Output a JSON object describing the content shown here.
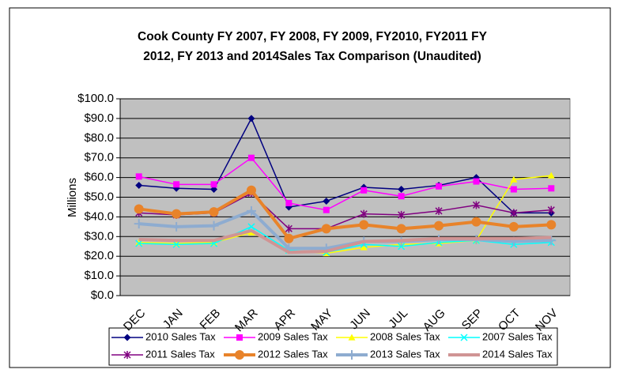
{
  "chart_data": {
    "type": "line",
    "title": "Cook County FY 2007, FY 2008, FY 2009, FY2010, FY2011 FY 2012, FY 2013 and 2014Sales Tax Comparison (Unaudited)",
    "y_label": "Millions",
    "categories": [
      "DEC",
      "JAN",
      "FEB",
      "MAR",
      "APR",
      "MAY",
      "JUN",
      "JUL",
      "AUG",
      "SEP",
      "OCT",
      "NOV"
    ],
    "ylim": [
      0,
      100
    ],
    "yticks": [
      {
        "value": 0,
        "label": "$0.0"
      },
      {
        "value": 10,
        "label": "$10.0"
      },
      {
        "value": 20,
        "label": "$20.0"
      },
      {
        "value": 30,
        "label": "$30.0"
      },
      {
        "value": 40,
        "label": "$40.0"
      },
      {
        "value": 50,
        "label": "$50.0"
      },
      {
        "value": 60,
        "label": "$60.0"
      },
      {
        "value": 70,
        "label": "$70.0"
      },
      {
        "value": 80,
        "label": "$80.0"
      },
      {
        "value": 90,
        "label": "$90.0"
      },
      {
        "value": 100,
        "label": "$100.0"
      }
    ],
    "grid": true,
    "legend": "bottom",
    "series": [
      {
        "name": "2010 Sales Tax",
        "color": "#000080",
        "marker": "diamond",
        "width": 1.5,
        "values": [
          56,
          54.5,
          54,
          90,
          45,
          48,
          55,
          54,
          56,
          60,
          42,
          42
        ]
      },
      {
        "name": "2009 Sales Tax",
        "color": "#ff00ff",
        "marker": "square",
        "width": 1.5,
        "values": [
          60.5,
          56.5,
          56.5,
          70,
          47,
          43.5,
          53.5,
          50.5,
          55.5,
          58,
          54,
          54.5
        ]
      },
      {
        "name": "2008 Sales Tax",
        "color": "#ffff00",
        "marker": "triangle",
        "width": 1.5,
        "values": [
          27,
          26.5,
          27,
          32,
          23,
          21.5,
          24.5,
          26,
          26.5,
          28,
          59,
          61
        ]
      },
      {
        "name": "2007 Sales Tax",
        "color": "#00ffff",
        "marker": "x",
        "width": 1.5,
        "values": [
          26.5,
          26,
          26.5,
          35,
          23,
          22,
          26,
          25,
          27,
          28,
          26,
          27
        ]
      },
      {
        "name": "2011 Sales Tax",
        "color": "#800080",
        "marker": "asterisk",
        "width": 1.5,
        "values": [
          42,
          41,
          42,
          52,
          34,
          34,
          41.5,
          41,
          43,
          46,
          42,
          43.5
        ]
      },
      {
        "name": "2012 Sales Tax",
        "color": "#e8832a",
        "marker": "circle",
        "width": 4,
        "values": [
          44,
          41.5,
          42.5,
          53.5,
          29,
          34,
          36,
          34,
          35.5,
          37.5,
          35,
          36
        ]
      },
      {
        "name": "2013 Sales Tax",
        "color": "#8eacd0",
        "marker": "plus",
        "width": 4,
        "values": [
          36.5,
          35,
          35.5,
          43,
          24,
          24,
          27.5,
          27.5,
          28.5,
          28.5,
          27.5,
          28
        ]
      },
      {
        "name": "2014 Sales Tax",
        "color": "#d09494",
        "marker": "none",
        "width": 4,
        "values": [
          28.5,
          28,
          28,
          33,
          22,
          22.5,
          27.5,
          28,
          29,
          29,
          29,
          29.5
        ]
      }
    ]
  }
}
